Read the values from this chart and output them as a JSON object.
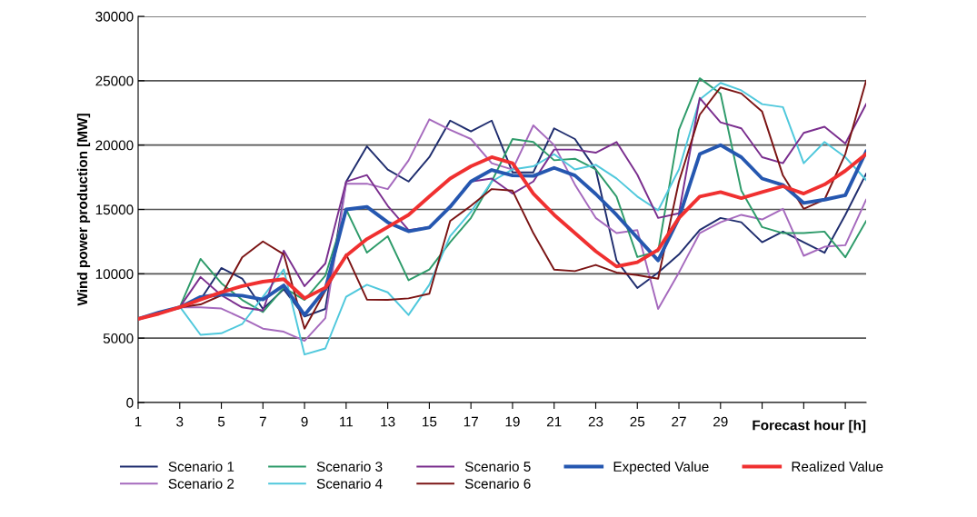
{
  "chart_data": {
    "type": "line",
    "ylabel": "Wind power production [MW]",
    "xlabel": "Forecast hour [h]",
    "x": [
      1,
      2,
      3,
      4,
      5,
      6,
      7,
      8,
      9,
      10,
      11,
      12,
      13,
      14,
      15,
      16,
      17,
      18,
      19,
      20,
      21,
      22,
      23,
      24,
      25,
      26,
      27,
      28,
      29,
      30,
      31,
      32,
      33,
      34,
      35,
      36
    ],
    "xlim": [
      1,
      36
    ],
    "xticks": [
      1,
      3,
      5,
      7,
      9,
      11,
      13,
      15,
      17,
      19,
      21,
      23,
      25,
      27,
      29,
      {
        "value": 31,
        "label": null
      },
      {
        "value": 33,
        "label": null
      },
      {
        "value": 35,
        "label": null
      }
    ],
    "ylim": [
      0,
      30000
    ],
    "yticks": [
      0,
      5000,
      10000,
      15000,
      20000,
      25000,
      30000
    ],
    "grid": "y",
    "legend": "bottom",
    "marker": "none",
    "line_style": "solid",
    "series": [
      {
        "name": "Scenario 1",
        "color": "#1f2d6e",
        "values": [
          6500,
          6950,
          7400,
          8000,
          10450,
          9630,
          7270,
          8800,
          6680,
          7270,
          17160,
          19900,
          18100,
          17170,
          19060,
          21900,
          21060,
          21900,
          17880,
          17880,
          21300,
          20470,
          18100,
          11040,
          8900,
          10100,
          11500,
          13400,
          14340,
          14000,
          12450,
          13280,
          12450,
          11630,
          14580,
          17760
        ]
      },
      {
        "name": "Scenario 2",
        "color": "#a569bd",
        "values": [
          6500,
          7000,
          7400,
          7390,
          7300,
          6560,
          5740,
          5500,
          4790,
          6560,
          17000,
          17000,
          16580,
          18800,
          22000,
          21180,
          20470,
          18590,
          18100,
          21530,
          20000,
          16930,
          14340,
          13160,
          13400,
          7270,
          10100,
          13160,
          14000,
          14580,
          14220,
          15050,
          11400,
          12100,
          12220,
          15760
        ]
      },
      {
        "name": "Scenario 3",
        "color": "#2e9b6a",
        "values": [
          6500,
          6950,
          7400,
          11160,
          9270,
          7970,
          7030,
          8920,
          7970,
          9860,
          15000,
          11640,
          12920,
          9500,
          10330,
          12450,
          14340,
          17170,
          20470,
          20240,
          18820,
          18940,
          18110,
          16000,
          11300,
          11750,
          21180,
          25190,
          24000,
          16460,
          13630,
          13160,
          13160,
          13280,
          11280,
          14100
        ]
      },
      {
        "name": "Scenario 4",
        "color": "#4fc8dc",
        "values": [
          6500,
          6900,
          7460,
          5260,
          5380,
          6090,
          8210,
          10340,
          3730,
          4200,
          8210,
          9150,
          8560,
          6800,
          9150,
          12920,
          14810,
          17170,
          18110,
          18350,
          19290,
          18110,
          18470,
          17410,
          16000,
          14930,
          18110,
          23540,
          24830,
          24250,
          23180,
          22950,
          18590,
          20240,
          19060,
          17290
        ]
      },
      {
        "name": "Scenario 5",
        "color": "#7a2e8e",
        "values": [
          6500,
          7000,
          7400,
          9750,
          8330,
          7390,
          7150,
          11800,
          9040,
          10800,
          17160,
          17670,
          15280,
          13400,
          13630,
          15280,
          17170,
          17400,
          16230,
          17170,
          19650,
          19650,
          19410,
          20240,
          17700,
          14340,
          14700,
          23660,
          21770,
          21300,
          19060,
          18590,
          20950,
          21420,
          20120,
          23180
        ]
      },
      {
        "name": "Scenario 6",
        "color": "#7b1414",
        "values": [
          6500,
          6950,
          7400,
          7620,
          8330,
          11280,
          12510,
          11520,
          5740,
          8680,
          11520,
          8000,
          7970,
          8090,
          8450,
          14100,
          15280,
          16580,
          16460,
          13160,
          10330,
          10210,
          10690,
          10100,
          9900,
          9620,
          17170,
          22360,
          24480,
          24010,
          22600,
          17640,
          15050,
          15760,
          19300,
          25000
        ]
      },
      {
        "name": "Expected Value",
        "color": "#2557b0",
        "values": [
          6500,
          7000,
          7400,
          8200,
          8400,
          8300,
          8000,
          9100,
          6800,
          8800,
          15000,
          15200,
          14000,
          13300,
          13600,
          15200,
          17170,
          18070,
          17640,
          17600,
          18230,
          17640,
          16200,
          14580,
          12800,
          11040,
          14340,
          19300,
          20000,
          19060,
          17400,
          16900,
          15500,
          15760,
          16100,
          19500
        ]
      },
      {
        "name": "Realized Value",
        "color": "#f03030",
        "values": [
          6500,
          6900,
          7400,
          8000,
          8570,
          9040,
          9390,
          9580,
          8100,
          8920,
          11400,
          12700,
          13630,
          14580,
          16000,
          17400,
          18350,
          19060,
          18590,
          16230,
          14580,
          13160,
          11750,
          10570,
          10900,
          11870,
          14340,
          16000,
          16350,
          15870,
          16350,
          16800,
          16230,
          16940,
          18000,
          19300
        ]
      }
    ]
  }
}
